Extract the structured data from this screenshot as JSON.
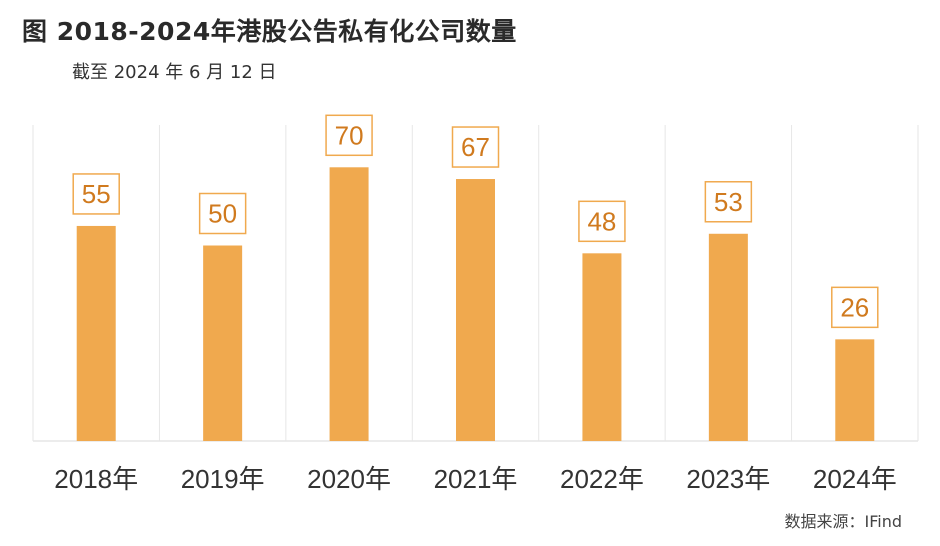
{
  "header": {
    "title": "图  2018-2024年港股公告私有化公司数量",
    "subtitle": "截至 2024 年 6 月 12 日"
  },
  "footer": {
    "source": "数据来源：IFind"
  },
  "colors": {
    "bar": "#f0a94e",
    "label_border": "#f0a94e",
    "label_text": "#d07a1e",
    "grid": "#e6e6e6"
  },
  "chart_data": {
    "type": "bar",
    "categories": [
      "2018年",
      "2019年",
      "2020年",
      "2021年",
      "2022年",
      "2023年",
      "2024年"
    ],
    "values": [
      55,
      50,
      70,
      67,
      48,
      53,
      26
    ],
    "title": "2018-2024年港股公告私有化公司数量",
    "xlabel": "",
    "ylabel": "",
    "ylim": [
      0,
      80
    ],
    "grid": "vertical separators",
    "legend": "none",
    "data_labels": true
  }
}
